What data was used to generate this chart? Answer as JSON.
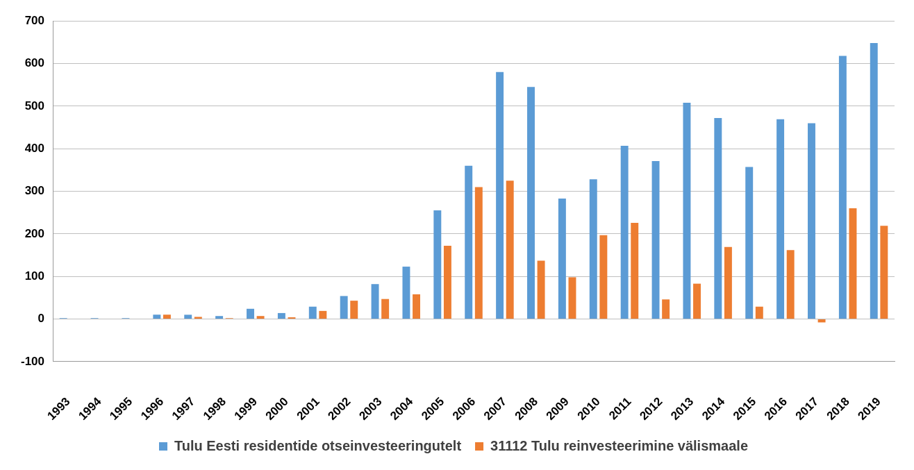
{
  "chart_data": {
    "type": "bar",
    "categories": [
      "1993",
      "1994",
      "1995",
      "1996",
      "1997",
      "1998",
      "1999",
      "2000",
      "2001",
      "2002",
      "2003",
      "2004",
      "2005",
      "2006",
      "2007",
      "2008",
      "2009",
      "2010",
      "2011",
      "2012",
      "2013",
      "2014",
      "2015",
      "2016",
      "2017",
      "2018",
      "2019"
    ],
    "series": [
      {
        "name": "Tulu Eesti residentide otseinvesteeringutelt",
        "color": "#5b9bd5",
        "values": [
          2,
          2,
          2,
          10,
          10,
          7,
          24,
          14,
          29,
          54,
          82,
          123,
          255,
          360,
          580,
          545,
          283,
          328,
          407,
          371,
          508,
          472,
          357,
          469,
          460,
          618,
          648
        ]
      },
      {
        "name": "31112 Tulu reinvesteerimine välismaale",
        "color": "#ed7d31",
        "values": [
          0,
          0,
          0,
          10,
          5,
          2,
          7,
          4,
          19,
          43,
          47,
          58,
          172,
          310,
          325,
          137,
          98,
          197,
          226,
          46,
          83,
          169,
          29,
          162,
          -8,
          260,
          219
        ]
      }
    ],
    "ylim": [
      -100,
      700
    ],
    "yticks": [
      -100,
      0,
      100,
      200,
      300,
      400,
      500,
      600,
      700
    ],
    "grid": "y",
    "legend": "bottom"
  }
}
